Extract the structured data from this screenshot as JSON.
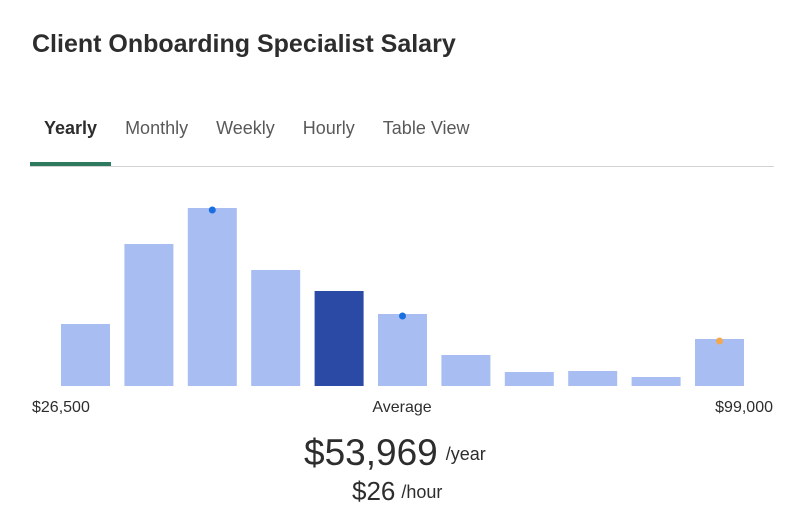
{
  "header": {
    "title": "Client Onboarding Specialist Salary"
  },
  "tabs": [
    "Yearly",
    "Monthly",
    "Weekly",
    "Hourly",
    "Table View"
  ],
  "active_tab": 0,
  "chart_data": {
    "type": "bar",
    "values": [
      62,
      142,
      178,
      116,
      95,
      72,
      31,
      14,
      15,
      9,
      47
    ],
    "colors": [
      "#a8bdf2",
      "#a8bdf2",
      "#a8bdf2",
      "#a8bdf2",
      "#2a4aa5",
      "#a8bdf2",
      "#a8bdf2",
      "#a8bdf2",
      "#a8bdf2",
      "#a8bdf2",
      "#a8bdf2"
    ],
    "marker_colors": [
      null,
      null,
      "#1a6fe0",
      null,
      null,
      "#1a6fe0",
      null,
      null,
      null,
      null,
      "#f2a94e"
    ],
    "min_label": "$26,500",
    "center_label": "Average",
    "max_label": "$99,000"
  },
  "summary": {
    "amount": "$53,969",
    "period": "/year",
    "hourly": "$26",
    "hourly_period": "/hour"
  }
}
